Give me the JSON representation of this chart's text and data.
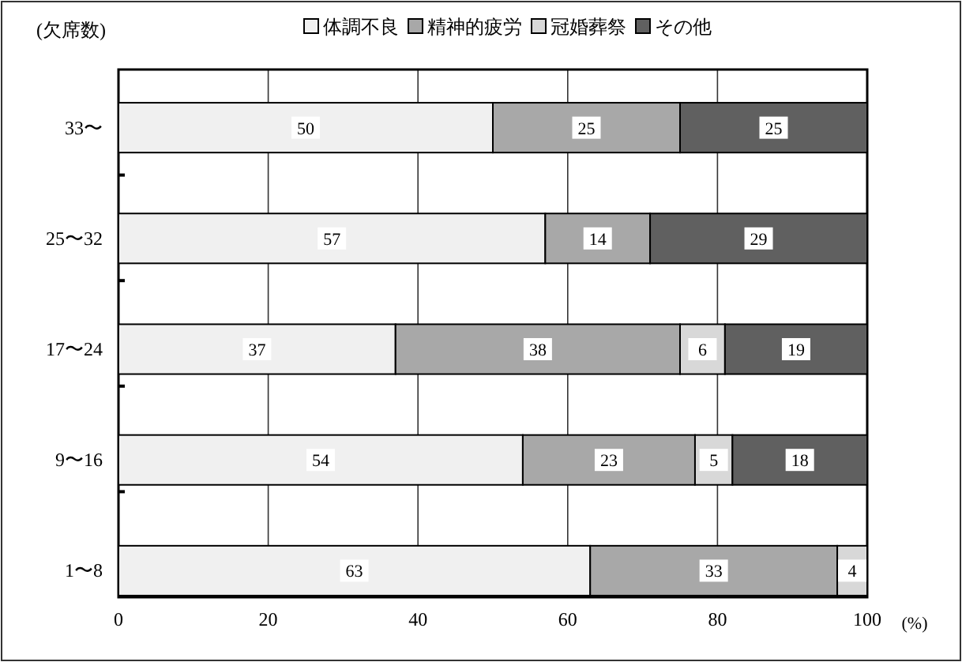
{
  "chart_data": {
    "type": "bar",
    "orientation": "horizontal",
    "stacked": true,
    "data_labels": true,
    "legend": "top",
    "grid": "x",
    "ylabel": "(欠席数)",
    "xlabel": "(%)",
    "categories": [
      "33〜",
      "25〜32",
      "17〜24",
      "9〜16",
      "1〜8"
    ],
    "series": [
      {
        "name": "体調不良",
        "color": "#f0f0f0",
        "values": [
          50,
          57,
          37,
          54,
          63
        ]
      },
      {
        "name": "精神的疲労",
        "color": "#a8a8a8",
        "values": [
          25,
          14,
          38,
          23,
          33
        ]
      },
      {
        "name": "冠婚葬祭",
        "color": "#d8d8d8",
        "values": [
          null,
          null,
          6,
          5,
          4
        ]
      },
      {
        "name": "その他",
        "color": "#606060",
        "values": [
          25,
          29,
          19,
          18,
          null
        ]
      }
    ],
    "xlim": [
      0,
      100
    ],
    "xticks": [
      0,
      20,
      40,
      60,
      80,
      100
    ]
  }
}
